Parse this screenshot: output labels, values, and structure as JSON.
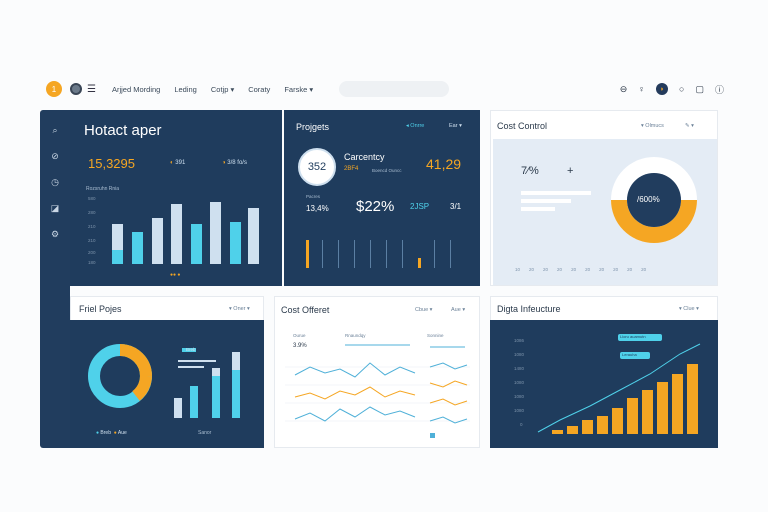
{
  "topbar": {
    "badge": "1",
    "nav": [
      "Arjjed Mording",
      "Leding",
      "Cotjp ▾",
      "Coraty",
      "Farske ▾"
    ],
    "search_placeholder": "",
    "icons": [
      "settings-icon",
      "pin-icon",
      "profile-icon",
      "search-icon",
      "doc-icon",
      "info-icon"
    ]
  },
  "sidebar": {
    "items": [
      "search-icon",
      "link-icon",
      "clock-icon",
      "folder-icon",
      "gear-icon"
    ]
  },
  "card1": {
    "title": "Hotact aper",
    "big_value": "15,3295",
    "stat1": "391",
    "stat2": "3/8 fo/s",
    "sub_label": "Rozsruhn Rnia",
    "y_labels": [
      "580",
      "280",
      "210",
      "210",
      "200",
      "180",
      "90",
      "6"
    ],
    "legend": "●● ●"
  },
  "card2": {
    "title": "Projgets",
    "ctrl1": "◂ Onrre",
    "ctrl2": "Ear ▾",
    "ring_value": "352",
    "kpi_label": "Carcentcy",
    "kpi_value": "41,29",
    "sub_a": "2BF4",
    "sub_b": "Boencd Ouncc",
    "mini_label": "Pacres",
    "mini_value": "13,4%",
    "big_pct": "$22%",
    "val_b": "2JSP",
    "val_c": "3/1"
  },
  "card3": {
    "title": "Cost Control",
    "ctrl1": "▾ Olmucs",
    "ctrl2": "✎ ▾",
    "pct": "7⁄%",
    "plus": "+",
    "donut_label": "/600%",
    "x_labels": [
      "10",
      "20",
      "20",
      "20",
      "20",
      "20",
      "20",
      "20",
      "20",
      "20"
    ]
  },
  "card4": {
    "title": "Friel Pojes",
    "ctrl": "▾ Oner ▾",
    "legend_a": "Breb",
    "legend_b": "Aue",
    "foot": "Sanor"
  },
  "card5": {
    "title": "Cost Offeret",
    "ctrl1": "Cbue ▾",
    "ctrl2": "Aue ▾",
    "col1_head": "Ourue",
    "col1_val": "3.9%",
    "col2_head": "Rnaundqy",
    "col3_head": "Sonnine"
  },
  "card6": {
    "title": "Digta Infeucture",
    "ctrl": "▾ Clue ▾",
    "y_labels": [
      "1086",
      "1080",
      "1480",
      "1080",
      "1080",
      "1080",
      "1080",
      "0"
    ],
    "tooltip1": "Lloru auamutn",
    "tooltip2": "Lerauha"
  },
  "colors": {
    "navy": "#1f3c5d",
    "cyan": "#4fd1ea",
    "orange": "#f5a623",
    "light_panel": "#e4ecf5"
  }
}
